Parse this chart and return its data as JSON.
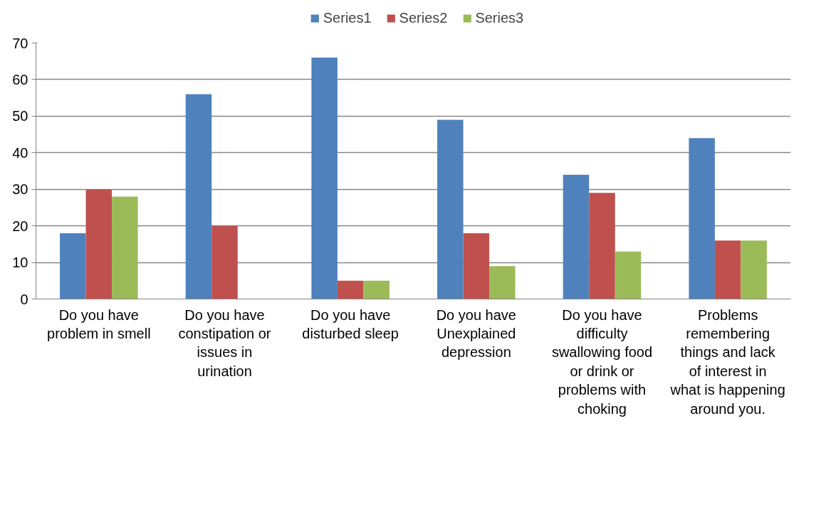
{
  "chart_data": {
    "type": "bar",
    "categories": [
      "Do you have problem in smell",
      "Do you have constipation or issues in urination",
      "Do you have disturbed sleep",
      "Do you have Unexplained depression",
      "Do you have difficulty swallowing food or drink or problems with choking",
      "Problems remembering things and lack of interest in what is happening around you."
    ],
    "series": [
      {
        "name": "Series1",
        "color": "#4f81bd",
        "values": [
          18,
          56,
          66,
          49,
          34,
          44
        ]
      },
      {
        "name": "Series2",
        "color": "#c0504d",
        "values": [
          30,
          20,
          5,
          18,
          29,
          16
        ]
      },
      {
        "name": "Series3",
        "color": "#9bbb59",
        "values": [
          28,
          0,
          5,
          9,
          13,
          16
        ]
      }
    ],
    "ylim": [
      0,
      70
    ],
    "yticks": [
      0,
      10,
      20,
      30,
      40,
      50,
      60,
      70
    ],
    "grid": "y",
    "legend": "top"
  }
}
